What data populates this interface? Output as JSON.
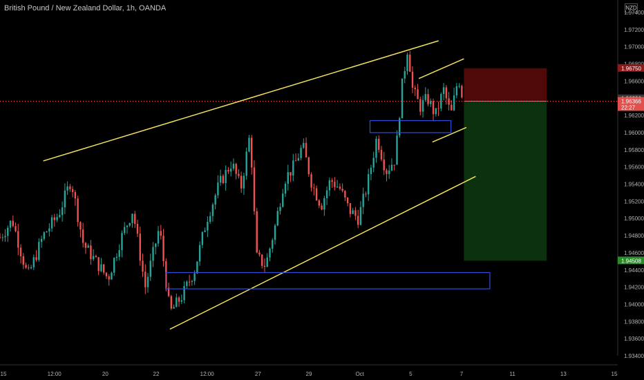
{
  "header": {
    "title": "British Pound / New Zealand Dollar, 1h, OANDA",
    "currency": "NZD"
  },
  "chart_data": {
    "type": "candlestick",
    "symbol": "GBPNZD",
    "timeframe": "1h",
    "ylim": [
      1.934,
      1.974
    ],
    "y_ticks": [
      "1.97400",
      "1.97200",
      "1.97000",
      "1.96800",
      "1.96600",
      "1.96400",
      "1.96200",
      "1.96000",
      "1.95800",
      "1.95600",
      "1.95400",
      "1.95200",
      "1.95000",
      "1.94800",
      "1.94600",
      "1.94400",
      "1.94200",
      "1.94000",
      "1.93800",
      "1.93600",
      "1.93400"
    ],
    "x_ticks": [
      "15",
      "12:00",
      "20",
      "22",
      "12:00",
      "27",
      "29",
      "Oct",
      "5",
      "7",
      "11",
      "13",
      "15"
    ],
    "price_badges": [
      {
        "label": "1.96750",
        "value": 1.9675,
        "color": "#8b1a1a"
      },
      {
        "label": "1.96396",
        "value": 1.96396,
        "color": "#3a3a3a"
      },
      {
        "label": "1.96366",
        "sub": "22:27",
        "value": 1.96366,
        "color": "#e0504c"
      },
      {
        "label": "1.94508",
        "value": 1.94508,
        "color": "#2b8a2b"
      }
    ],
    "current_price": 1.96366,
    "position": {
      "side": "short",
      "entry": 1.96366,
      "stop": 1.9675,
      "target": 1.94508
    },
    "colors": {
      "up": "#26a69a",
      "down": "#ef5350",
      "trendline": "#f2e15c",
      "box": "#2f4dd8"
    },
    "trendlines": [
      {
        "from": [
          0.07,
          1.9567
        ],
        "to": [
          0.71,
          1.9707
        ]
      },
      {
        "from": [
          0.275,
          1.9371
        ],
        "to": [
          0.77,
          1.9549
        ]
      },
      {
        "from": [
          0.678,
          1.9663
        ],
        "to": [
          0.751,
          1.9686
        ]
      },
      {
        "from": [
          0.7,
          1.9589
        ],
        "to": [
          0.755,
          1.9606
        ]
      }
    ],
    "boxes": [
      {
        "x0": 0.268,
        "x1": 0.793,
        "y0": 1.9418,
        "y1": 1.9437
      },
      {
        "x0": 0.599,
        "x1": 0.73,
        "y0": 1.96,
        "y1": 1.9614
      }
    ],
    "series": [
      {
        "x": 0.0,
        "value": 1.9478
      },
      {
        "x": 0.02,
        "value": 1.9498
      },
      {
        "x": 0.045,
        "value": 1.9432
      },
      {
        "x": 0.07,
        "value": 1.948
      },
      {
        "x": 0.095,
        "value": 1.9505
      },
      {
        "x": 0.115,
        "value": 1.9545
      },
      {
        "x": 0.135,
        "value": 1.947
      },
      {
        "x": 0.155,
        "value": 1.945
      },
      {
        "x": 0.175,
        "value": 1.943
      },
      {
        "x": 0.195,
        "value": 1.9475
      },
      {
        "x": 0.215,
        "value": 1.951
      },
      {
        "x": 0.235,
        "value": 1.942
      },
      {
        "x": 0.258,
        "value": 1.949
      },
      {
        "x": 0.275,
        "value": 1.939
      },
      {
        "x": 0.295,
        "value": 1.941
      },
      {
        "x": 0.315,
        "value": 1.944
      },
      {
        "x": 0.335,
        "value": 1.95
      },
      {
        "x": 0.355,
        "value": 1.954
      },
      {
        "x": 0.375,
        "value": 1.9565
      },
      {
        "x": 0.39,
        "value": 1.9535
      },
      {
        "x": 0.405,
        "value": 1.96
      },
      {
        "x": 0.415,
        "value": 1.9455
      },
      {
        "x": 0.43,
        "value": 1.9445
      },
      {
        "x": 0.445,
        "value": 1.949
      },
      {
        "x": 0.46,
        "value": 1.9545
      },
      {
        "x": 0.475,
        "value": 1.956
      },
      {
        "x": 0.49,
        "value": 1.9585
      },
      {
        "x": 0.505,
        "value": 1.954
      },
      {
        "x": 0.52,
        "value": 1.9515
      },
      {
        "x": 0.535,
        "value": 1.9545
      },
      {
        "x": 0.55,
        "value": 1.9535
      },
      {
        "x": 0.565,
        "value": 1.951
      },
      {
        "x": 0.58,
        "value": 1.95
      },
      {
        "x": 0.595,
        "value": 1.954
      },
      {
        "x": 0.61,
        "value": 1.9595
      },
      {
        "x": 0.625,
        "value": 1.9555
      },
      {
        "x": 0.64,
        "value": 1.957
      },
      {
        "x": 0.65,
        "value": 1.965
      },
      {
        "x": 0.66,
        "value": 1.97
      },
      {
        "x": 0.668,
        "value": 1.965
      },
      {
        "x": 0.68,
        "value": 1.963
      },
      {
        "x": 0.692,
        "value": 1.964
      },
      {
        "x": 0.705,
        "value": 1.962
      },
      {
        "x": 0.718,
        "value": 1.965
      },
      {
        "x": 0.73,
        "value": 1.962
      },
      {
        "x": 0.742,
        "value": 1.9665
      },
      {
        "x": 0.75,
        "value": 1.96366
      }
    ]
  }
}
